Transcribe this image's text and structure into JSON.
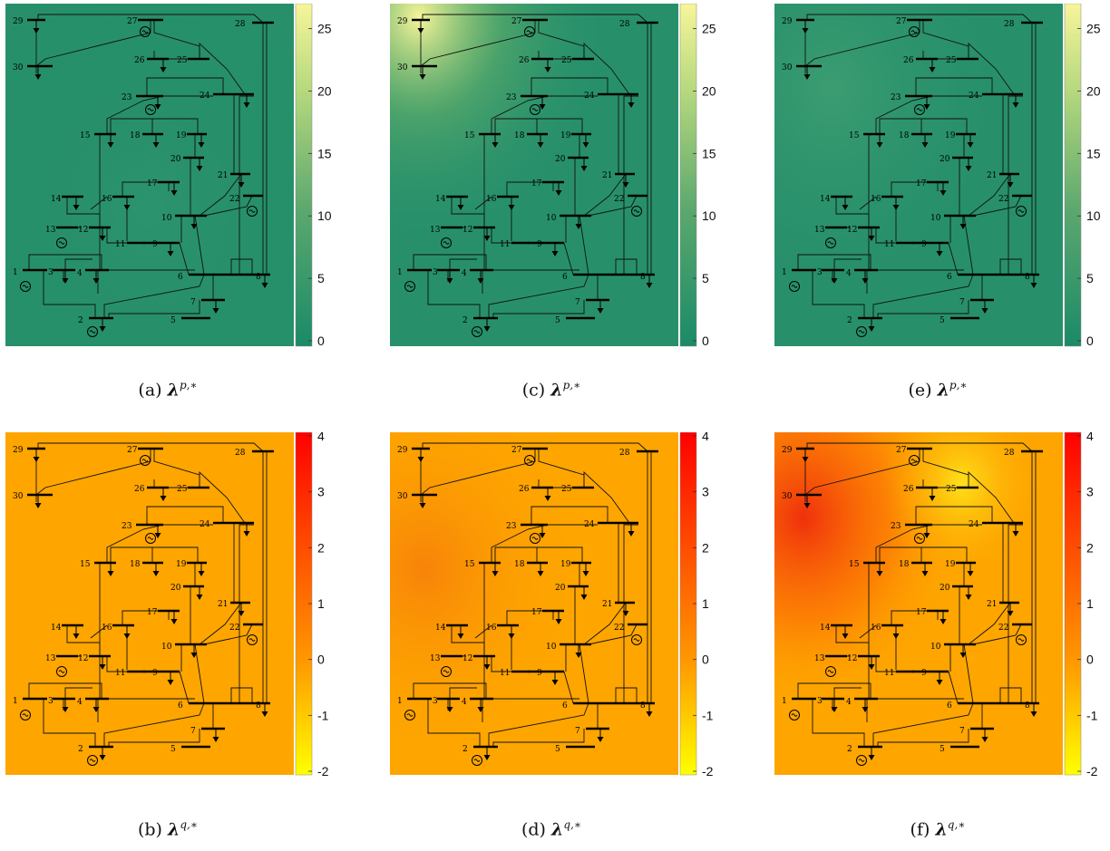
{
  "colors": {
    "p_low": "#1a8a68",
    "p_high": "#f7f59a",
    "q_low": "#ffff00",
    "q_mid": "#ff9900",
    "q_high": "#ff0000"
  },
  "colorbar_p": {
    "ticks": [
      "25",
      "20",
      "15",
      "10",
      "5",
      "0"
    ]
  },
  "colorbar_q": {
    "ticks": [
      "4",
      "3",
      "2",
      "1",
      "0",
      "-1",
      "-2"
    ]
  },
  "captions": [
    {
      "letter": "(a)",
      "sym": "λ",
      "sup": "p,∗"
    },
    {
      "letter": "(c)",
      "sym": "λ",
      "sup": "p,∗"
    },
    {
      "letter": "(e)",
      "sym": "λ",
      "sup": "p,∗"
    },
    {
      "letter": "(b)",
      "sym": "λ",
      "sup": "q,∗"
    },
    {
      "letter": "(d)",
      "sym": "λ",
      "sup": "q,∗"
    },
    {
      "letter": "(f)",
      "sym": "λ",
      "sup": "q,∗"
    }
  ],
  "buses": [
    {
      "id": "1",
      "label": "1"
    },
    {
      "id": "2",
      "label": "2"
    },
    {
      "id": "3",
      "label": "3"
    },
    {
      "id": "4",
      "label": "4"
    },
    {
      "id": "5",
      "label": "5"
    },
    {
      "id": "6",
      "label": "6"
    },
    {
      "id": "7",
      "label": "7"
    },
    {
      "id": "8",
      "label": "8"
    },
    {
      "id": "9",
      "label": "9"
    },
    {
      "id": "10",
      "label": "10"
    },
    {
      "id": "11",
      "label": "11"
    },
    {
      "id": "12",
      "label": "12"
    },
    {
      "id": "13",
      "label": "13"
    },
    {
      "id": "14",
      "label": "14"
    },
    {
      "id": "15",
      "label": "15"
    },
    {
      "id": "16",
      "label": "16"
    },
    {
      "id": "17",
      "label": "17"
    },
    {
      "id": "18",
      "label": "18"
    },
    {
      "id": "19",
      "label": "19"
    },
    {
      "id": "20",
      "label": "20"
    },
    {
      "id": "21",
      "label": "21"
    },
    {
      "id": "22",
      "label": "22"
    },
    {
      "id": "23",
      "label": "23"
    },
    {
      "id": "24",
      "label": "24"
    },
    {
      "id": "25",
      "label": "25"
    },
    {
      "id": "26",
      "label": "26"
    },
    {
      "id": "27",
      "label": "27"
    },
    {
      "id": "28",
      "label": "28"
    },
    {
      "id": "29",
      "label": "29"
    },
    {
      "id": "30",
      "label": "30"
    }
  ]
}
